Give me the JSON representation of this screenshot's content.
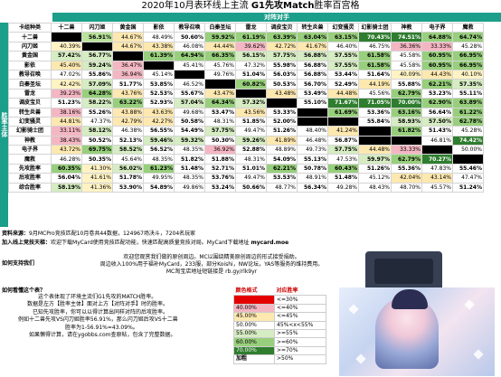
{
  "title_prefix": "2020年10月表环线上主流 ",
  "title_bold": "G1先攻Match",
  "title_suffix": "胜率百宫格",
  "opp_header": "对阵对手",
  "side_header": "胜率主体",
  "corner_label": "卡组种类",
  "columns": [
    "十二兽",
    "闪刀姬",
    "黄金国",
    "影依",
    "教导召唤",
    "白秦圣坛",
    "雷龙",
    "调皮宝贝",
    "转生炎兽",
    "幻变骚灵",
    "幻影骑士团",
    "神教",
    "电子界",
    "魔救"
  ],
  "col_widths": [
    22,
    28,
    28,
    28,
    28,
    28,
    28,
    28,
    28,
    28,
    28,
    28,
    28,
    28,
    28
  ],
  "rows": [
    {
      "label": "十二兽",
      "cells": [
        [
          "",
          "x"
        ],
        [
          "56.91%",
          "d"
        ],
        [
          "44.67%",
          "p"
        ],
        [
          "48.49%",
          "w"
        ],
        [
          "50.60%",
          "w"
        ],
        [
          "59.92%",
          "g"
        ],
        [
          "61.19%",
          "g"
        ],
        [
          "63.39%",
          "g"
        ],
        [
          "63.04%",
          "g"
        ],
        [
          "63.15%",
          "g"
        ],
        [
          "70.43%",
          "G"
        ],
        [
          "74.51%",
          "G"
        ],
        [
          "64.88%",
          "g"
        ],
        [
          "64.74%",
          "g"
        ]
      ]
    },
    {
      "label": "闪刀姬",
      "cells": [
        [
          "40.39%",
          "y"
        ],
        [
          "",
          "x"
        ],
        [
          "44.67%",
          "p"
        ],
        [
          "43.38%",
          "p"
        ],
        [
          "46.08%",
          "w"
        ],
        [
          "44.44%",
          "p"
        ],
        [
          "39.62%",
          "r"
        ],
        [
          "42.72%",
          "p"
        ],
        [
          "41.67%",
          "p"
        ],
        [
          "46.40%",
          "w"
        ],
        [
          "46.75%",
          "w"
        ],
        [
          "36.36%",
          "r"
        ],
        [
          "33.33%",
          "r"
        ],
        [
          "45.28%",
          "w"
        ]
      ]
    },
    {
      "label": "黄金国",
      "cells": [
        [
          "57.42%",
          "l"
        ],
        [
          "56.77%",
          "l"
        ],
        [
          "",
          "x"
        ],
        [
          "61.39%",
          "g"
        ],
        [
          "64.94%",
          "g"
        ],
        [
          "66.35%",
          "g"
        ],
        [
          "56.15%",
          "l"
        ],
        [
          "57.75%",
          "l"
        ],
        [
          "56.88%",
          "l"
        ],
        [
          "57.55%",
          "l"
        ],
        [
          "61.58%",
          "g"
        ],
        [
          "45.58%",
          "w"
        ],
        [
          "60.95%",
          "g"
        ],
        [
          "66.95%",
          "g"
        ]
      ]
    },
    {
      "label": "影依",
      "cells": [
        [
          "45.40%",
          "p"
        ],
        [
          "59.24%",
          "l"
        ],
        [
          "36.47%",
          "r"
        ],
        [
          "",
          "x"
        ],
        [
          "45.41%",
          "w"
        ],
        [
          "45.76%",
          "w"
        ],
        [
          "47.32%",
          "w"
        ],
        [
          "55.98%",
          "w"
        ],
        [
          "56.88%",
          "w"
        ],
        [
          "57.55%",
          "l"
        ],
        [
          "61.58%",
          "g"
        ],
        [
          "45.58%",
          "w"
        ],
        [
          "60.95%",
          "g"
        ],
        [
          "66.95%",
          "g"
        ]
      ]
    },
    {
      "label": "教导召唤",
      "cells": [
        [
          "47.02%",
          "w"
        ],
        [
          "55.86%",
          "w"
        ],
        [
          "36.94%",
          "r"
        ],
        [
          "45.14%",
          "w"
        ],
        [
          "",
          "x"
        ],
        [
          "49.76%",
          "w"
        ],
        [
          "51.04%",
          "w"
        ],
        [
          "56.03%",
          "w"
        ],
        [
          "56.88%",
          "w"
        ],
        [
          "53.44%",
          "w"
        ],
        [
          "51.64%",
          "w"
        ],
        [
          "40.09%",
          "y"
        ],
        [
          "44.43%",
          "p"
        ],
        [
          "40.10%",
          "y"
        ]
      ]
    },
    {
      "label": "白秦圣坛",
      "cells": [
        [
          "42.42%",
          "y"
        ],
        [
          "57.09%",
          "l"
        ],
        [
          "51.77%",
          "w"
        ],
        [
          "53.85%",
          "w"
        ],
        [
          "46.52%",
          "w"
        ],
        [
          "",
          "x"
        ],
        [
          "60.82%",
          "g"
        ],
        [
          "50.53%",
          "w"
        ],
        [
          "56.70%",
          "w"
        ],
        [
          "52.49%",
          "w"
        ],
        [
          "44.19%",
          "p"
        ],
        [
          "55.88%",
          "w"
        ],
        [
          "62.21%",
          "g"
        ],
        [
          "57.35%",
          "l"
        ]
      ]
    },
    {
      "label": "雷龙",
      "cells": [
        [
          "39.23%",
          "r"
        ],
        [
          "64.28%",
          "g"
        ],
        [
          "43.76%",
          "p"
        ],
        [
          "52.53%",
          "w"
        ],
        [
          "55.67%",
          "w"
        ],
        [
          "43.47%",
          "p"
        ],
        [
          "",
          "x"
        ],
        [
          "43.48%",
          "p"
        ],
        [
          "53.49%",
          "w"
        ],
        [
          "44.48%",
          "p"
        ],
        [
          "45.56%",
          "w"
        ],
        [
          "62.79%",
          "g"
        ],
        [
          "53.23%",
          "w"
        ],
        [
          "55.11%",
          "w"
        ]
      ]
    },
    {
      "label": "调皮宝贝",
      "cells": [
        [
          "51.23%",
          "w"
        ],
        [
          "58.22%",
          "l"
        ],
        [
          "63.22%",
          "g"
        ],
        [
          "52.93%",
          "w"
        ],
        [
          "57.04%",
          "l"
        ],
        [
          "64.34%",
          "g"
        ],
        [
          "57.32%",
          "l"
        ],
        [
          "",
          "x"
        ],
        [
          "55.10%",
          "w"
        ],
        [
          "71.67%",
          "G"
        ],
        [
          "71.05%",
          "G"
        ],
        [
          "70.00%",
          "G"
        ],
        [
          "62.90%",
          "g"
        ],
        [
          "63.89%",
          "g"
        ]
      ]
    },
    {
      "label": "转生炎兽",
      "cells": [
        [
          "38.16%",
          "r"
        ],
        [
          "55.26%",
          "w"
        ],
        [
          "43.88%",
          "p"
        ],
        [
          "43.63%",
          "p"
        ],
        [
          "49.68%",
          "w"
        ],
        [
          "53.47%",
          "w"
        ],
        [
          "43.56%",
          "p"
        ],
        [
          "53.33%",
          "w"
        ],
        [
          "",
          "x"
        ],
        [
          "61.69%",
          "g"
        ],
        [
          "53.36%",
          "w"
        ],
        [
          "63.16%",
          "g"
        ],
        [
          "56.64%",
          "w"
        ],
        [
          "61.22%",
          "g"
        ]
      ]
    },
    {
      "label": "幻变骚灵",
      "cells": [
        [
          "44.81%",
          "p"
        ],
        [
          "47.37%",
          "w"
        ],
        [
          "42.79%",
          "p"
        ],
        [
          "42.27%",
          "p"
        ],
        [
          "50.58%",
          "w"
        ],
        [
          "48.31%",
          "w"
        ],
        [
          "51.85%",
          "w"
        ],
        [
          "52.00%",
          "w"
        ],
        [
          "",
          "x"
        ],
        [
          "",
          "x"
        ],
        [
          "55.84%",
          "w"
        ],
        [
          "58.93%",
          "l"
        ],
        [
          "57.50%",
          "l"
        ],
        [
          "62.78%",
          "g"
        ]
      ]
    },
    {
      "label": "幻影骑士团",
      "cells": [
        [
          "33.11%",
          "r"
        ],
        [
          "58.12%",
          "l"
        ],
        [
          "46.38%",
          "w"
        ],
        [
          "56.55%",
          "w"
        ],
        [
          "54.49%",
          "w"
        ],
        [
          "57.75%",
          "l"
        ],
        [
          "49.47%",
          "w"
        ],
        [
          "51.26%",
          "w"
        ],
        [
          "48.40%",
          "w"
        ],
        [
          "41.24%",
          "p"
        ],
        [
          "",
          "x"
        ],
        [
          "61.82%",
          "g"
        ],
        [
          "51.43%",
          "w"
        ],
        [
          "45.28%",
          "w"
        ]
      ]
    },
    {
      "label": "神教",
      "cells": [
        [
          "38.43%",
          "r"
        ],
        [
          "50.52%",
          "w"
        ],
        [
          "52.13%",
          "w"
        ],
        [
          "59.46%",
          "l"
        ],
        [
          "59.32%",
          "l"
        ],
        [
          "50.30%",
          "w"
        ],
        [
          "59.26%",
          "l"
        ],
        [
          "41.89%",
          "p"
        ],
        [
          "46.48%",
          "w"
        ],
        [
          "56.87%",
          "w"
        ],
        [
          "",
          "x"
        ],
        [
          "",
          "x"
        ],
        [
          "46.81%",
          "w"
        ],
        [
          "74.42%",
          "G"
        ]
      ]
    },
    {
      "label": "电子界",
      "cells": [
        [
          "43.72%",
          "p"
        ],
        [
          "69.75%",
          "g"
        ],
        [
          "58.52%",
          "l"
        ],
        [
          "56.52%",
          "w"
        ],
        [
          "48.35%",
          "w"
        ],
        [
          "36.92%",
          "r"
        ],
        [
          "52.88%",
          "w"
        ],
        [
          "48.89%",
          "w"
        ],
        [
          "49.73%",
          "w"
        ],
        [
          "57.75%",
          "l"
        ],
        [
          "44.48%",
          "p"
        ],
        [
          "33.33%",
          "r"
        ],
        [
          "",
          "x"
        ],
        [
          "50.00%",
          "w"
        ]
      ]
    },
    {
      "label": "魔救",
      "cells": [
        [
          "46.28%",
          "w"
        ],
        [
          "50.35%",
          "w"
        ],
        [
          "45.64%",
          "w"
        ],
        [
          "48.35%",
          "w"
        ],
        [
          "51.82%",
          "w"
        ],
        [
          "51.88%",
          "w"
        ],
        [
          "48.31%",
          "w"
        ],
        [
          "54.09%",
          "w"
        ],
        [
          "55.13%",
          "w"
        ],
        [
          "47.53%",
          "w"
        ],
        [
          "59.97%",
          "l"
        ],
        [
          "62.79%",
          "g"
        ],
        [
          "70.27%",
          "G"
        ],
        [
          "",
          "x"
        ]
      ]
    },
    {
      "label": "先攻胜率",
      "cells": [
        [
          "60.35%",
          "g"
        ],
        [
          "41.30%",
          "y"
        ],
        [
          "56.02%",
          "l"
        ],
        [
          "61.23%",
          "g"
        ],
        [
          "51.48%",
          "w"
        ],
        [
          "52.71%",
          "w"
        ],
        [
          "51.01%",
          "w"
        ],
        [
          "62.21%",
          "g"
        ],
        [
          "50.78%",
          "w"
        ],
        [
          "60.43%",
          "g"
        ],
        [
          "51.26%",
          "w"
        ],
        [
          "55.36%",
          "w"
        ],
        [
          "47.83%",
          "w"
        ],
        [
          "55.46%",
          "w"
        ]
      ]
    },
    {
      "label": "后攻胜率",
      "cells": [
        [
          "56.04%",
          "w"
        ],
        [
          "41.61%",
          "y"
        ],
        [
          "51.78%",
          "w"
        ],
        [
          "49.95%",
          "w"
        ],
        [
          "48.35%",
          "w"
        ],
        [
          "53.76%",
          "w"
        ],
        [
          "49.47%",
          "w"
        ],
        [
          "53.53%",
          "w"
        ],
        [
          "48.91%",
          "w"
        ],
        [
          "51.48%",
          "w"
        ],
        [
          "45.12%",
          "w"
        ],
        [
          "42.04%",
          "p"
        ],
        [
          "43.14%",
          "p"
        ],
        [
          "47.47%",
          "w"
        ]
      ]
    },
    {
      "label": "综合胜率",
      "cells": [
        [
          "58.19%",
          "l"
        ],
        [
          "41.36%",
          "y"
        ],
        [
          "53.90%",
          "w"
        ],
        [
          "54.89%",
          "w"
        ],
        [
          "49.86%",
          "w"
        ],
        [
          "53.24%",
          "w"
        ],
        [
          "50.66%",
          "w"
        ],
        [
          "48.77%",
          "w"
        ],
        [
          "56.34%",
          "w"
        ],
        [
          "49.28%",
          "w"
        ],
        [
          "48.43%",
          "w"
        ],
        [
          "48.70%",
          "w"
        ],
        [
          "45.57%",
          "w"
        ],
        [
          "51.24%",
          "w"
        ]
      ]
    }
  ],
  "info_source_label": "资料来源：",
  "info_source": "9月MCPro竞技匹配10月卷共44数据，124967场决斗，7204名玩家",
  "info_group_label": "加入线上竞技天梯：",
  "info_group": "欢迎下载MyCard使用竞技匹配功能，快速匹配高质量竞技对局。MyCard下载地址",
  "info_group_link": "mycard.moe",
  "support_label": "如何支持我们",
  "support_lines": [
    "欢迎您观赏我们做的原创周边。MC以围绕精美原创周边的形式接受捐助。",
    "周边收入100%用于福补MyCard，233服，部分Koishi，NW论坛，YAS等服务的维持费用。",
    "MC淘宝店地址短链接是 rb.gy/rlk9yr"
  ],
  "howto_label": "如何看懂这个表？",
  "howto_lines": [
    "这个表体现了环境主流们G1先攻的MATCH胜率。",
    "数据是左方【胜率主体】面对上方【对阵对手】时的胜率。",
    "已知先攻胜率，你可以以得计算出同样对阵的后攻胜率。",
    "例如十二兽先攻VS闪刀姬胜率56.91%，那么闪刀姬后攻VS十二兽",
    "胜率为1-56.91%=43.09%。",
    "如果懒得计算，请在ygobbs.com查原帖，包含了完整数据。"
  ],
  "legend_head_color": "颜色格式",
  "legend_head_rate": "对应胜率",
  "legend_rows": [
    {
      "label": "",
      "range": "<=30%",
      "color": "#e40000"
    },
    {
      "label": "40.00%",
      "range": "<=40%",
      "color": "#f4b6c2"
    },
    {
      "label": "45.00%",
      "range": "<=45%",
      "color": "#fde8b0"
    },
    {
      "label": "50.00%",
      "range": "45%<x<55%",
      "color": "#ffffff"
    },
    {
      "label": "55.00%",
      "range": ">=55%",
      "color": "#d6ecc3"
    },
    {
      "label": "60.00%",
      "range": ">=60%",
      "color": "#98cf7c"
    },
    {
      "label": "70.00%",
      "range": ">=70%",
      "color": "#2f7d2f"
    },
    {
      "label": "加粗",
      "range": ">50%",
      "color": "#ffffff"
    }
  ],
  "colors": {
    "x": "#000000",
    "r": "#f4b6c2",
    "p": "#fde8b0",
    "y": "#fff3c4",
    "w": "#ffffff",
    "l": "#d6ecc3",
    "g": "#98cf7c",
    "d": "#b9e29b",
    "G": "#2f7d2f"
  }
}
